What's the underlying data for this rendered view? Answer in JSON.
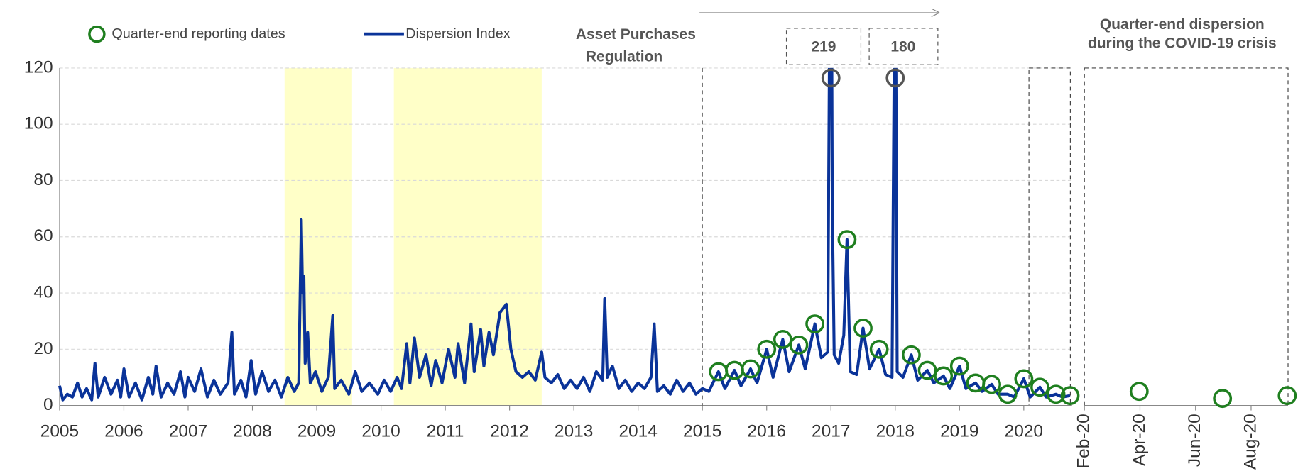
{
  "chart_data": [
    {
      "type": "line",
      "legend": "top-left",
      "annotation_lines": [
        "Asset  Purchases",
        "Regulation"
      ],
      "vline": 2015,
      "shaded_ranges": [
        [
          2008.5,
          2009.55
        ],
        [
          2010.2,
          2012.5
        ]
      ],
      "shade_color": "#ffffc8",
      "xlim": [
        2005,
        2020.75
      ],
      "xticks": [
        2005,
        2006,
        2007,
        2008,
        2009,
        2010,
        2011,
        2012,
        2013,
        2014,
        2015,
        2016,
        2017,
        2018,
        2019,
        2020
      ],
      "ylim": [
        0,
        120
      ],
      "yticks": [
        0,
        20,
        40,
        60,
        80,
        100,
        120
      ],
      "grid": true,
      "series": [
        {
          "name": "Dispersion Index",
          "color": "#0a3399",
          "x": [
            2005.0,
            2005.05,
            2005.12,
            2005.2,
            2005.28,
            2005.35,
            2005.42,
            2005.5,
            2005.55,
            2005.6,
            2005.7,
            2005.8,
            2005.9,
            2005.95,
            2006.0,
            2006.08,
            2006.18,
            2006.28,
            2006.38,
            2006.45,
            2006.5,
            2006.58,
            2006.68,
            2006.78,
            2006.88,
            2006.95,
            2007.0,
            2007.1,
            2007.2,
            2007.3,
            2007.4,
            2007.5,
            2007.62,
            2007.68,
            2007.72,
            2007.82,
            2007.9,
            2007.98,
            2008.05,
            2008.15,
            2008.25,
            2008.35,
            2008.45,
            2008.55,
            2008.65,
            2008.72,
            2008.76,
            2008.78,
            2008.8,
            2008.82,
            2008.86,
            2008.9,
            2008.98,
            2009.08,
            2009.18,
            2009.25,
            2009.28,
            2009.38,
            2009.5,
            2009.6,
            2009.7,
            2009.82,
            2009.95,
            2010.05,
            2010.15,
            2010.25,
            2010.32,
            2010.4,
            2010.45,
            2010.52,
            2010.6,
            2010.7,
            2010.78,
            2010.85,
            2010.95,
            2011.05,
            2011.15,
            2011.2,
            2011.3,
            2011.4,
            2011.45,
            2011.55,
            2011.6,
            2011.68,
            2011.75,
            2011.85,
            2011.95,
            2012.02,
            2012.1,
            2012.2,
            2012.3,
            2012.4,
            2012.5,
            2012.55,
            2012.65,
            2012.75,
            2012.85,
            2012.95,
            2013.05,
            2013.15,
            2013.25,
            2013.35,
            2013.45,
            2013.48,
            2013.52,
            2013.6,
            2013.7,
            2013.8,
            2013.9,
            2014.0,
            2014.1,
            2014.2,
            2014.25,
            2014.3,
            2014.4,
            2014.5,
            2014.6,
            2014.7,
            2014.8,
            2014.9,
            2015.0,
            2015.1,
            2015.25,
            2015.35,
            2015.5,
            2015.6,
            2015.75,
            2015.85,
            2016.0,
            2016.1,
            2016.25,
            2016.35,
            2016.5,
            2016.6,
            2016.75,
            2016.85,
            2016.95,
            2017.0,
            2017.02,
            2017.05,
            2017.12,
            2017.2,
            2017.25,
            2017.3,
            2017.4,
            2017.5,
            2017.6,
            2017.75,
            2017.85,
            2017.95,
            2018.0,
            2018.03,
            2018.12,
            2018.25,
            2018.35,
            2018.5,
            2018.6,
            2018.75,
            2018.85,
            2019.0,
            2019.1,
            2019.25,
            2019.35,
            2019.5,
            2019.6,
            2019.75,
            2019.85,
            2020.0,
            2020.1,
            2020.25,
            2020.35,
            2020.5,
            2020.6,
            2020.72
          ],
          "values": [
            7,
            2,
            4,
            3,
            8,
            3,
            6,
            2,
            15,
            3,
            10,
            4,
            9,
            3,
            13,
            3,
            8,
            2,
            10,
            4,
            14,
            3,
            8,
            4,
            12,
            3,
            10,
            5,
            13,
            3,
            9,
            4,
            8,
            26,
            4,
            9,
            3,
            16,
            4,
            12,
            5,
            9,
            3,
            10,
            5,
            8,
            66,
            40,
            46,
            15,
            26,
            8,
            12,
            5,
            10,
            32,
            6,
            9,
            4,
            12,
            5,
            8,
            4,
            9,
            5,
            10,
            6,
            22,
            8,
            24,
            10,
            18,
            7,
            16,
            8,
            20,
            10,
            22,
            8,
            29,
            12,
            27,
            14,
            26,
            18,
            33,
            36,
            20,
            12,
            10,
            12,
            9,
            19,
            10,
            8,
            11,
            6,
            9,
            6,
            10,
            5,
            12,
            9,
            38,
            10,
            14,
            6,
            9,
            5,
            8,
            6,
            10,
            29,
            5,
            7,
            4,
            9,
            5,
            8,
            4,
            6,
            5,
            12,
            6,
            12.5,
            7,
            13,
            8,
            20,
            10,
            23.5,
            12,
            21.5,
            13,
            29,
            17,
            19,
            219,
            73,
            18,
            15,
            25,
            59,
            12,
            11,
            27.5,
            13,
            20,
            11,
            10,
            180,
            12,
            10,
            18,
            9,
            12.5,
            8,
            10.5,
            6,
            14,
            6,
            8,
            5,
            7.5,
            4,
            4,
            3,
            9.5,
            3,
            6.5,
            3,
            4,
            3,
            3.5
          ]
        },
        {
          "name": "Quarter-end reporting dates",
          "color": "#1f7f1f",
          "marker": "circle",
          "x": [
            2015.25,
            2015.5,
            2015.75,
            2016.0,
            2016.25,
            2016.5,
            2016.75,
            2017.0,
            2017.25,
            2017.5,
            2017.75,
            2018.0,
            2018.25,
            2018.5,
            2018.75,
            2019.0,
            2019.25,
            2019.5,
            2019.75,
            2020.0,
            2020.25,
            2020.5,
            2020.72
          ],
          "values": [
            12,
            12.5,
            13,
            20,
            23.5,
            21.5,
            29,
            219,
            59,
            27.5,
            20,
            180,
            18,
            12.5,
            10.5,
            14,
            8,
            7.5,
            4,
            9.5,
            6.5,
            4,
            3.5
          ]
        }
      ]
    },
    {
      "type": "line",
      "title_lines": [
        "Quarter-end dispersion",
        "during the COVID-19 crisis"
      ],
      "xlim": [
        2,
        9.33
      ],
      "xticks": [
        {
          "value": 2,
          "label": "Feb-20"
        },
        {
          "value": 4,
          "label": "Apr-20"
        },
        {
          "value": 6,
          "label": "Jun-20"
        },
        {
          "value": 8,
          "label": "Aug-20"
        }
      ],
      "ylim": [
        0,
        120
      ],
      "series": [
        {
          "name": "Dispersion Index",
          "color": "#0a3399",
          "x": [
            2,
            2.3,
            2.6,
            3.0,
            3.3,
            3.45,
            3.5,
            3.6,
            3.8,
            3.97,
            4.2,
            4.5,
            5,
            5.5,
            6,
            6.5,
            6.97,
            7.3,
            7.8,
            8.3,
            8.8,
            9.3
          ],
          "values": [
            3,
            3.5,
            3,
            4,
            6,
            8.5,
            7,
            6,
            5,
            5,
            3.5,
            3,
            2.5,
            2.5,
            2.8,
            2,
            2.5,
            2.8,
            2.5,
            3,
            2.6,
            3.5
          ]
        },
        {
          "name": "Quarter-end reporting dates",
          "color": "#1f7f1f",
          "marker": "circle",
          "x": [
            3.97,
            6.97,
            9.3
          ],
          "values": [
            5,
            2.5,
            3.5
          ]
        }
      ]
    }
  ]
}
